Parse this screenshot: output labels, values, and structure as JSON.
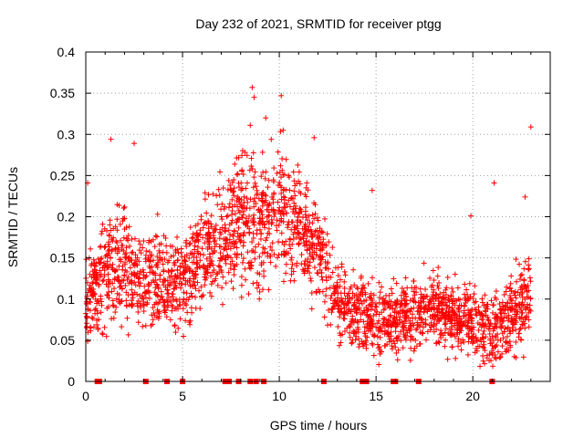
{
  "chart_data": {
    "type": "scatter",
    "title": "Day 232 of 2021, SRMTID for receiver ptgg",
    "xlabel": "GPS time / hours",
    "ylabel": "SRMTID / TECUs",
    "xlim": [
      0,
      24
    ],
    "ylim": [
      0,
      0.4
    ],
    "xticks": [
      0,
      5,
      10,
      15,
      20
    ],
    "yticks": [
      0,
      0.05,
      0.1,
      0.15,
      0.2,
      0.25,
      0.3,
      0.35,
      0.4
    ],
    "xtick_labels": [
      "0",
      "5",
      "10",
      "15",
      "20"
    ],
    "ytick_labels": [
      "0",
      "0.05",
      "0.1",
      "0.15",
      "0.2",
      "0.25",
      "0.3",
      "0.35",
      "0.4"
    ],
    "grid": true,
    "marker": "plus",
    "color": "#ff0000",
    "series": [
      {
        "name": "SRMTID",
        "trend": [
          {
            "x": 0.0,
            "y": 0.1,
            "spread": 0.035
          },
          {
            "x": 1.0,
            "y": 0.13,
            "spread": 0.045
          },
          {
            "x": 2.0,
            "y": 0.14,
            "spread": 0.045
          },
          {
            "x": 3.0,
            "y": 0.12,
            "spread": 0.04
          },
          {
            "x": 4.0,
            "y": 0.12,
            "spread": 0.04
          },
          {
            "x": 5.0,
            "y": 0.12,
            "spread": 0.04
          },
          {
            "x": 6.0,
            "y": 0.15,
            "spread": 0.045
          },
          {
            "x": 7.0,
            "y": 0.17,
            "spread": 0.05
          },
          {
            "x": 8.0,
            "y": 0.2,
            "spread": 0.055
          },
          {
            "x": 9.0,
            "y": 0.18,
            "spread": 0.055
          },
          {
            "x": 10.0,
            "y": 0.21,
            "spread": 0.05
          },
          {
            "x": 11.0,
            "y": 0.19,
            "spread": 0.045
          },
          {
            "x": 12.0,
            "y": 0.16,
            "spread": 0.04
          },
          {
            "x": 13.0,
            "y": 0.1,
            "spread": 0.035
          },
          {
            "x": 14.0,
            "y": 0.08,
            "spread": 0.03
          },
          {
            "x": 15.0,
            "y": 0.07,
            "spread": 0.03
          },
          {
            "x": 16.0,
            "y": 0.08,
            "spread": 0.03
          },
          {
            "x": 17.0,
            "y": 0.08,
            "spread": 0.03
          },
          {
            "x": 18.0,
            "y": 0.09,
            "spread": 0.03
          },
          {
            "x": 19.0,
            "y": 0.08,
            "spread": 0.03
          },
          {
            "x": 20.0,
            "y": 0.07,
            "spread": 0.03
          },
          {
            "x": 21.0,
            "y": 0.06,
            "spread": 0.03
          },
          {
            "x": 22.0,
            "y": 0.08,
            "spread": 0.035
          },
          {
            "x": 23.0,
            "y": 0.1,
            "spread": 0.035
          }
        ],
        "outliers": [
          {
            "x": 8.6,
            "y": 0.357
          },
          {
            "x": 8.7,
            "y": 0.345
          },
          {
            "x": 10.1,
            "y": 0.347
          },
          {
            "x": 23.0,
            "y": 0.309
          },
          {
            "x": 1.3,
            "y": 0.294
          },
          {
            "x": 2.5,
            "y": 0.289
          },
          {
            "x": 8.5,
            "y": 0.311
          },
          {
            "x": 9.3,
            "y": 0.32
          },
          {
            "x": 10.2,
            "y": 0.305
          },
          {
            "x": 11.8,
            "y": 0.296
          },
          {
            "x": 21.1,
            "y": 0.241
          },
          {
            "x": 14.8,
            "y": 0.232
          },
          {
            "x": 0.1,
            "y": 0.241
          },
          {
            "x": 19.9,
            "y": 0.201
          },
          {
            "x": 22.7,
            "y": 0.224
          }
        ],
        "zero_values_x": [
          0.6,
          0.7,
          3.1,
          4.2,
          5.0,
          7.2,
          7.4,
          7.9,
          8.5,
          8.8,
          9.2,
          12.3,
          14.3,
          14.5,
          15.9,
          16.0,
          17.2,
          21.0
        ]
      }
    ]
  }
}
